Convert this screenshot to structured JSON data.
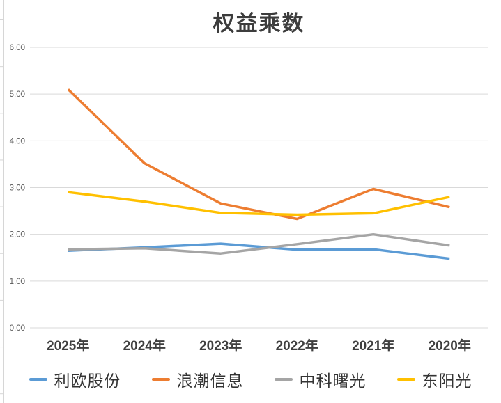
{
  "title": "权益乘数",
  "chart_data": {
    "type": "line",
    "title": "权益乘数",
    "categories": [
      "2025年",
      "2024年",
      "2023年",
      "2022年",
      "2021年",
      "2020年"
    ],
    "series": [
      {
        "name": "利欧股份",
        "color": "#5B9BD5",
        "values": [
          1.65,
          1.72,
          1.8,
          1.67,
          1.68,
          1.48
        ]
      },
      {
        "name": "浪潮信息",
        "color": "#ED7D31",
        "values": [
          5.1,
          3.52,
          2.66,
          2.33,
          2.97,
          2.58
        ]
      },
      {
        "name": "中科曙光",
        "color": "#A5A5A5",
        "values": [
          1.68,
          1.7,
          1.59,
          1.79,
          2.0,
          1.76
        ]
      },
      {
        "name": "东阳光",
        "color": "#FFC000",
        "values": [
          2.9,
          2.7,
          2.46,
          2.42,
          2.45,
          2.8
        ]
      }
    ],
    "y_ticks": [
      "6.00",
      "5.00",
      "4.00",
      "3.00",
      "2.00",
      "1.00",
      "0.00"
    ],
    "ylim": [
      0,
      6
    ],
    "grid": true,
    "legend_position": "bottom",
    "colors": {
      "gridline": "#D9D9D9",
      "x_label": "#3f3f3f",
      "y_label": "#595959",
      "title": "#3d3d3d",
      "edge_line": "#d6d6d6"
    }
  }
}
